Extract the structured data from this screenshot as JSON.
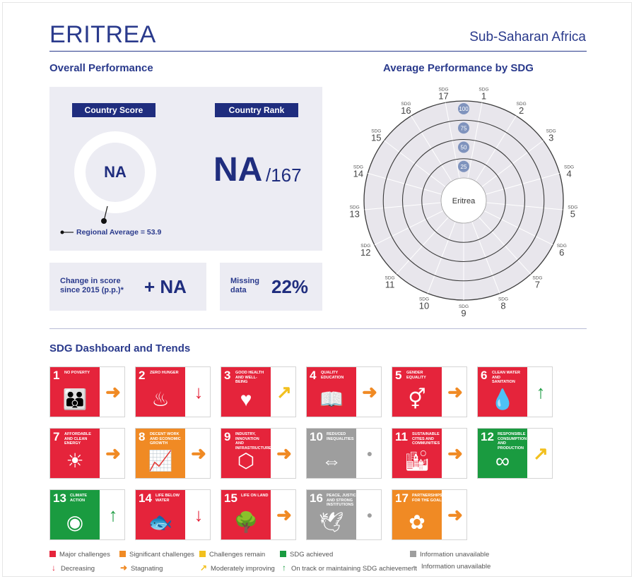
{
  "header": {
    "country": "ERITREA",
    "region": "Sub-Saharan Africa"
  },
  "overall": {
    "title": "Overall Performance",
    "score_label": "Country Score",
    "rank_label": "Country Rank",
    "score_value": "NA",
    "rank_value": "NA",
    "rank_total": "/167",
    "regional_average": "Regional Average = 53.9",
    "change_label_line1": "Change in score",
    "change_label_line2": "since 2015 (p.p.)*",
    "change_value": "+ NA",
    "missing_label_line1": "Missing",
    "missing_label_line2": "data",
    "missing_value": "22%"
  },
  "radar": {
    "title": "Average Performance by SDG",
    "center_label": "Eritrea",
    "sdg_prefix": "SDG",
    "ring_labels": [
      "100",
      "75",
      "50",
      "25"
    ],
    "sdgs": [
      "1",
      "2",
      "3",
      "4",
      "5",
      "6",
      "7",
      "8",
      "9",
      "10",
      "11",
      "12",
      "13",
      "14",
      "15",
      "16",
      "17"
    ],
    "colors": {
      "face": "#e8e6ec",
      "ring": "#3a3a3a",
      "badge": "#7f93bd"
    }
  },
  "dashboard": {
    "title": "SDG Dashboard and Trends",
    "tiles": [
      {
        "num": "1",
        "name": "No poverty",
        "icon": "family-icon",
        "glyph": "👪",
        "color": "#e5243b",
        "rating": "red",
        "trend": "stagnating",
        "trend_glyph": "➜",
        "trend_color": "#f08a24"
      },
      {
        "num": "2",
        "name": "Zero hunger",
        "icon": "bowl-icon",
        "glyph": "♨",
        "color": "#dda63a",
        "rating": "red",
        "trend": "decreasing",
        "trend_glyph": "↓",
        "trend_color": "#e5243b"
      },
      {
        "num": "3",
        "name": "Good health and well-being",
        "icon": "heartbeat-icon",
        "glyph": "♥",
        "color": "#4c9f38",
        "rating": "red",
        "trend": "moderately-improving",
        "trend_glyph": "↗",
        "trend_color": "#f2c01e"
      },
      {
        "num": "4",
        "name": "Quality education",
        "icon": "book-icon",
        "glyph": "📖",
        "color": "#c5192d",
        "rating": "red",
        "trend": "stagnating",
        "trend_glyph": "➜",
        "trend_color": "#f08a24"
      },
      {
        "num": "5",
        "name": "Gender equality",
        "icon": "gender-icon",
        "glyph": "⚥",
        "color": "#ff3a21",
        "rating": "red",
        "trend": "stagnating",
        "trend_glyph": "➜",
        "trend_color": "#f08a24"
      },
      {
        "num": "6",
        "name": "Clean water and sanitation",
        "icon": "water-glass-icon",
        "glyph": "💧",
        "color": "#26bde2",
        "rating": "red",
        "trend": "on-track",
        "trend_glyph": "↑",
        "trend_color": "#1a9b40"
      },
      {
        "num": "7",
        "name": "Affordable and clean energy",
        "icon": "sun-power-icon",
        "glyph": "☀",
        "color": "#fcc30b",
        "rating": "red",
        "trend": "stagnating",
        "trend_glyph": "➜",
        "trend_color": "#f08a24"
      },
      {
        "num": "8",
        "name": "Decent work and economic growth",
        "icon": "growth-chart-icon",
        "glyph": "📈",
        "color": "#a21942",
        "rating": "orange",
        "trend": "stagnating",
        "trend_glyph": "➜",
        "trend_color": "#f08a24"
      },
      {
        "num": "9",
        "name": "Industry, innovation and infrastructure",
        "icon": "cubes-icon",
        "glyph": "⬡",
        "color": "#fd6925",
        "rating": "red",
        "trend": "stagnating",
        "trend_glyph": "➜",
        "trend_color": "#f08a24"
      },
      {
        "num": "10",
        "name": "Reduced inequalities",
        "icon": "equality-icon",
        "glyph": "⇔",
        "color": "#dd1367",
        "rating": "grey",
        "trend": "information-unavailable",
        "trend_glyph": "●",
        "trend_color": "#9e9e9e"
      },
      {
        "num": "11",
        "name": "Sustainable cities and communities",
        "icon": "city-icon",
        "glyph": "🏙",
        "color": "#fd9d24",
        "rating": "red",
        "trend": "stagnating",
        "trend_glyph": "➜",
        "trend_color": "#f08a24"
      },
      {
        "num": "12",
        "name": "Responsible consumption and production",
        "icon": "infinity-icon",
        "glyph": "∞",
        "color": "#bf8b2e",
        "rating": "green",
        "trend": "moderately-improving",
        "trend_glyph": "↗",
        "trend_color": "#f2c01e"
      },
      {
        "num": "13",
        "name": "Climate action",
        "icon": "eye-globe-icon",
        "glyph": "◉",
        "color": "#3f7e44",
        "rating": "green",
        "trend": "on-track",
        "trend_glyph": "↑",
        "trend_color": "#1a9b40"
      },
      {
        "num": "14",
        "name": "Life below water",
        "icon": "fish-icon",
        "glyph": "🐟",
        "color": "#0a97d9",
        "rating": "red",
        "trend": "decreasing",
        "trend_glyph": "↓",
        "trend_color": "#e5243b"
      },
      {
        "num": "15",
        "name": "Life on land",
        "icon": "tree-icon",
        "glyph": "🌳",
        "color": "#56c02b",
        "rating": "red",
        "trend": "stagnating",
        "trend_glyph": "➜",
        "trend_color": "#f08a24"
      },
      {
        "num": "16",
        "name": "Peace, justice and strong institutions",
        "icon": "dove-icon",
        "glyph": "🕊",
        "color": "#00689d",
        "rating": "grey",
        "trend": "information-unavailable",
        "trend_glyph": "●",
        "trend_color": "#9e9e9e"
      },
      {
        "num": "17",
        "name": "Partnerships for the goals",
        "icon": "rings-icon",
        "glyph": "✿",
        "color": "#19486a",
        "rating": "orange",
        "trend": "stagnating",
        "trend_glyph": "➜",
        "trend_color": "#f08a24"
      }
    ],
    "rating_colors": {
      "red": "#e5243b",
      "orange": "#f08a24",
      "yellow": "#f2c01e",
      "green": "#1a9b40",
      "grey": "#9e9e9e"
    }
  },
  "legend": {
    "rating": [
      {
        "label": "Major challenges",
        "color": "#e5243b"
      },
      {
        "label": "Significant challenges",
        "color": "#f08a24"
      },
      {
        "label": "Challenges remain",
        "color": "#f2c01e"
      },
      {
        "label": "SDG achieved",
        "color": "#1a9b40"
      },
      {
        "label": "Information unavailable",
        "color": "#9e9e9e"
      }
    ],
    "trend": [
      {
        "label": "Decreasing",
        "glyph": "↓",
        "color": "#e5243b"
      },
      {
        "label": "Stagnating",
        "glyph": "➜",
        "color": "#f08a24"
      },
      {
        "label": "Moderately improving",
        "glyph": "↗",
        "color": "#f2c01e"
      },
      {
        "label": "On track or maintaining SDG achievement",
        "glyph": "↑",
        "color": "#1a9b40"
      },
      {
        "label": "Information unavailable",
        "glyph": "●",
        "color": "#9e9e9e"
      }
    ]
  }
}
